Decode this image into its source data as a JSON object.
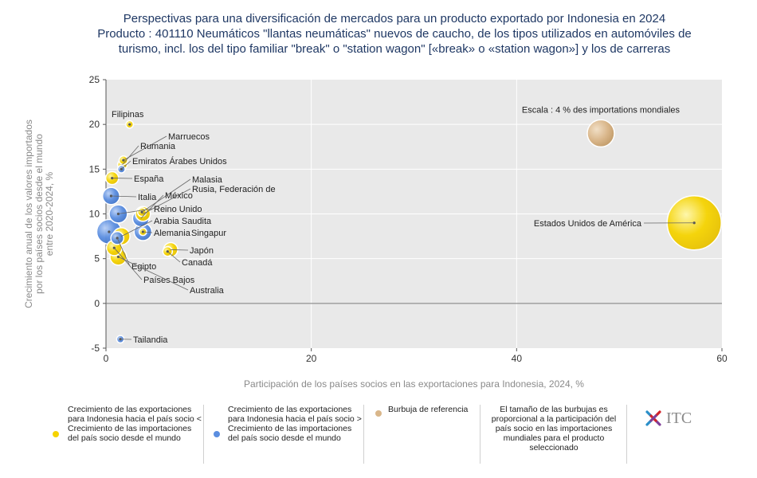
{
  "title": {
    "line1": "Perspectivas para una diversificación de mercados para un producto exportado por Indonesia en 2024",
    "line2": "Producto : 401110 Neumáticos \"llantas neumáticas\" nuevos de caucho, de los tipos utilizados en automóviles de",
    "line3": "turismo, incl. los del tipo familiar \"break\" o \"station wagon\" [«break» o «station wagon»] y los de carreras"
  },
  "colors": {
    "yellow": "#f5d300",
    "blue": "#5b8ee0",
    "reference": "#d9b68a",
    "plot_bg": "#e9e9e9",
    "grid": "#ffffff",
    "axis_text": "#8a8a8a"
  },
  "chart_data": {
    "type": "scatter",
    "xlabel": "Participación de los países socios en las exportaciones para Indonesia, 2024, %",
    "ylabel_lines": [
      "Crecimiento anual de los valores importados",
      "por los países socios desde el mundo",
      "entre 2020-2024, %"
    ],
    "xlim": [
      0,
      60
    ],
    "ylim": [
      -5,
      25
    ],
    "xticks": [
      0,
      20,
      40,
      60
    ],
    "yticks": [
      -5,
      0,
      5,
      10,
      15,
      20,
      25
    ],
    "grid": true,
    "series": [
      {
        "name": "Crecimiento de las exportaciones para Indonesia hacia el país socio < Crecimiento de las importaciones del país socio desde el mundo",
        "color_key": "yellow"
      },
      {
        "name": "Crecimiento de las exportaciones para Indonesia hacia el país socio > Crecimiento de las importaciones del país socio desde el mundo",
        "color_key": "blue"
      }
    ],
    "points": [
      {
        "label": "Filipinas",
        "x": 2.3,
        "y": 20,
        "share_world": 0.3,
        "series": 0
      },
      {
        "label": "Marruecos",
        "x": 1.7,
        "y": 16,
        "share_world": 0.4,
        "series": 0
      },
      {
        "label": "Rumania",
        "x": 1.6,
        "y": 15.5,
        "share_world": 0.5,
        "series": 0
      },
      {
        "label": "Emiratos Árabes Unidos",
        "x": 1.5,
        "y": 15,
        "share_world": 0.3,
        "series": 1
      },
      {
        "label": "España",
        "x": 0.6,
        "y": 14,
        "share_world": 0.9,
        "series": 0
      },
      {
        "label": "Italia",
        "x": 0.5,
        "y": 12,
        "share_world": 1.6,
        "series": 1
      },
      {
        "label": "Malasia",
        "x": 3.5,
        "y": 10.2,
        "share_world": 0.4,
        "series": 0
      },
      {
        "label": "Rusia, Federación de",
        "x": 3.6,
        "y": 10,
        "share_world": 1.2,
        "series": 0
      },
      {
        "label": "México",
        "x": 3.4,
        "y": 9.5,
        "share_world": 1.5,
        "series": 1
      },
      {
        "label": "Reino Unido",
        "x": 1.2,
        "y": 10,
        "share_world": 1.8,
        "series": 1
      },
      {
        "label": "Arabia Saudita",
        "x": 1.5,
        "y": 7.5,
        "share_world": 1.6,
        "series": 0
      },
      {
        "label": "Alemania",
        "x": 3.6,
        "y": 8,
        "share_world": 1.7,
        "series": 1
      },
      {
        "label": "Singapur",
        "x": 3.6,
        "y": 8,
        "share_world": 0.3,
        "series": 0
      },
      {
        "label": "Japón",
        "x": 6.3,
        "y": 6,
        "share_world": 1.1,
        "series": 0
      },
      {
        "label": "Canadá",
        "x": 6.0,
        "y": 5.8,
        "share_world": 0.5,
        "series": 0
      },
      {
        "label": "Egipto",
        "x": 1.1,
        "y": 7.3,
        "share_world": 0.9,
        "series": 1
      },
      {
        "label": "Países Bajos",
        "x": 0.8,
        "y": 6.2,
        "share_world": 1.3,
        "series": 0
      },
      {
        "label": "Australia",
        "x": 1.2,
        "y": 5.2,
        "share_world": 1.5,
        "series": 0
      },
      {
        "label": "",
        "x": 0.3,
        "y": 8,
        "share_world": 3.3,
        "series": 1
      },
      {
        "label": "Tailandia",
        "x": 1.4,
        "y": -4,
        "share_world": 0.3,
        "series": 1
      },
      {
        "label": "Estados Unidos de América",
        "x": 57.3,
        "y": 9,
        "share_world": 16,
        "series": 0
      }
    ],
    "reference": {
      "label": "Escala : 4 % des importations mondiales",
      "x": 48.2,
      "y": 19,
      "share_world": 4
    }
  },
  "legend": {
    "item1": "Crecimiento de las exportaciones para Indonesia hacia el país socio < Crecimiento de las importaciones del país socio desde el mundo",
    "item2": "Crecimiento de las exportaciones para Indonesia hacia el país socio > Crecimiento de las importaciones del país socio desde el mundo",
    "item3": "Burbuja de referencia",
    "note": "El tamaño de las burbujas es proporcional a la participación del país socio en las importaciones mundiales para el producto seleccionado"
  },
  "logo": {
    "text": "ITC"
  }
}
